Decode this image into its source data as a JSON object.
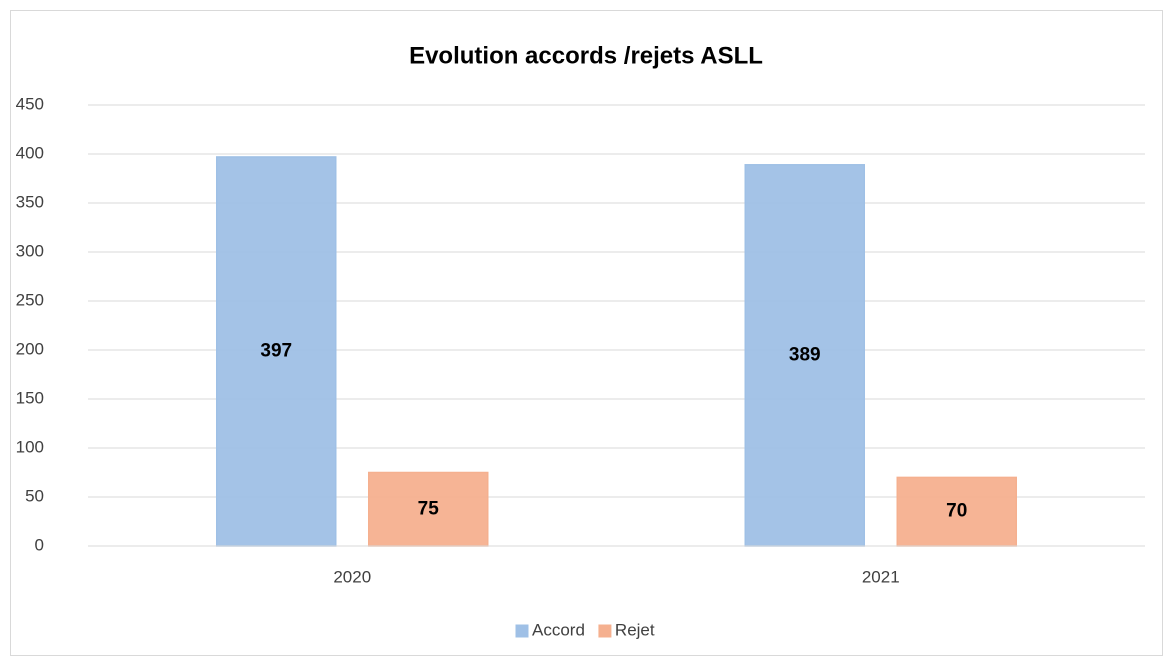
{
  "chart_data": {
    "type": "bar",
    "title": "Evolution accords /rejets ASLL",
    "categories": [
      "2020",
      "2021"
    ],
    "series": [
      {
        "name": "Accord",
        "color": "#9fc0e6",
        "values": [
          397,
          389
        ]
      },
      {
        "name": "Rejet",
        "color": "#f5b08f",
        "values": [
          75,
          70
        ]
      }
    ],
    "ylim": [
      0,
      450
    ],
    "yticks": [
      0,
      50,
      100,
      150,
      200,
      250,
      300,
      350,
      400,
      450
    ],
    "grid": true,
    "legend": "bottom"
  }
}
